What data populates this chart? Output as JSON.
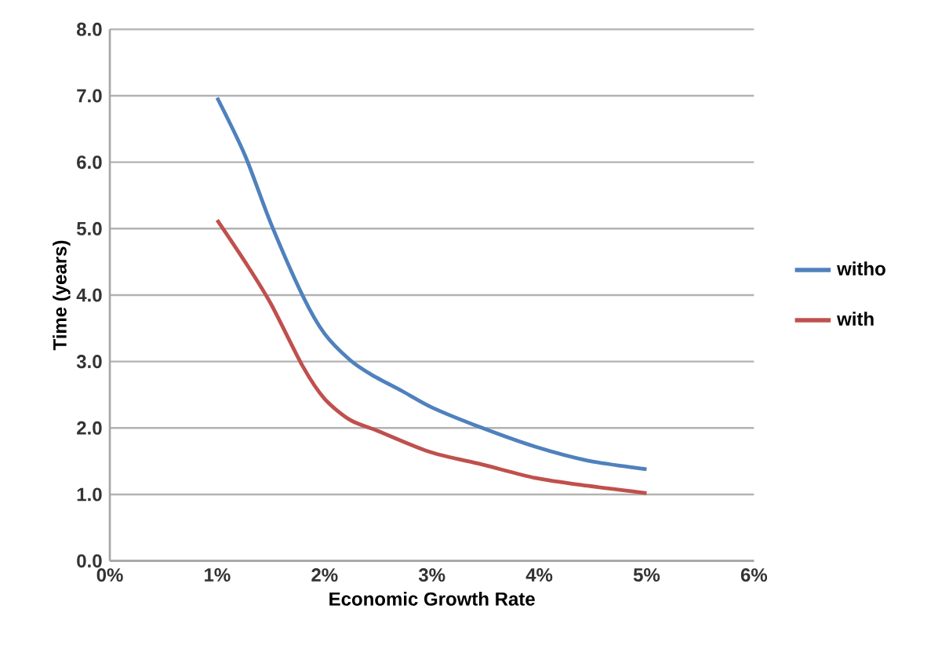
{
  "chart_data": {
    "type": "line",
    "xlabel": "Economic Growth Rate",
    "ylabel": "Time (years)",
    "xlim": [
      0,
      6
    ],
    "xticks": [
      {
        "value": 0,
        "label": "0%"
      },
      {
        "value": 1,
        "label": "1%"
      },
      {
        "value": 2,
        "label": "2%"
      },
      {
        "value": 3,
        "label": "3%"
      },
      {
        "value": 4,
        "label": "4%"
      },
      {
        "value": 5,
        "label": "5%"
      },
      {
        "value": 6,
        "label": "6%"
      }
    ],
    "ylim": [
      0,
      8
    ],
    "yticks": [
      {
        "value": 0,
        "label": "0.0"
      },
      {
        "value": 1,
        "label": "1.0"
      },
      {
        "value": 2,
        "label": "2.0"
      },
      {
        "value": 3,
        "label": "3.0"
      },
      {
        "value": 4,
        "label": "4.0"
      },
      {
        "value": 5,
        "label": "5.0"
      },
      {
        "value": 6,
        "label": "6.0"
      },
      {
        "value": 7,
        "label": "7.0"
      },
      {
        "value": 8,
        "label": "8.0"
      }
    ],
    "grid": "y",
    "legend": "right",
    "line_style": "solid",
    "marker": "none",
    "series": [
      {
        "name": "witho",
        "color": "#4f81bd",
        "x": [
          1.0,
          1.26,
          1.5,
          1.8,
          2.0,
          2.24,
          2.44,
          2.73,
          3.0,
          3.47,
          3.96,
          4.45,
          5.0
        ],
        "values": [
          6.97,
          6.1,
          5.08,
          3.98,
          3.42,
          3.02,
          2.8,
          2.55,
          2.31,
          2.0,
          1.72,
          1.51,
          1.38
        ]
      },
      {
        "name": "with",
        "color": "#c0504d",
        "x": [
          1.0,
          1.26,
          1.5,
          1.8,
          2.0,
          2.24,
          2.49,
          2.98,
          3.47,
          3.96,
          4.45,
          5.0
        ],
        "values": [
          5.13,
          4.5,
          3.87,
          2.92,
          2.44,
          2.12,
          1.96,
          1.64,
          1.45,
          1.25,
          1.13,
          1.02
        ]
      }
    ]
  }
}
